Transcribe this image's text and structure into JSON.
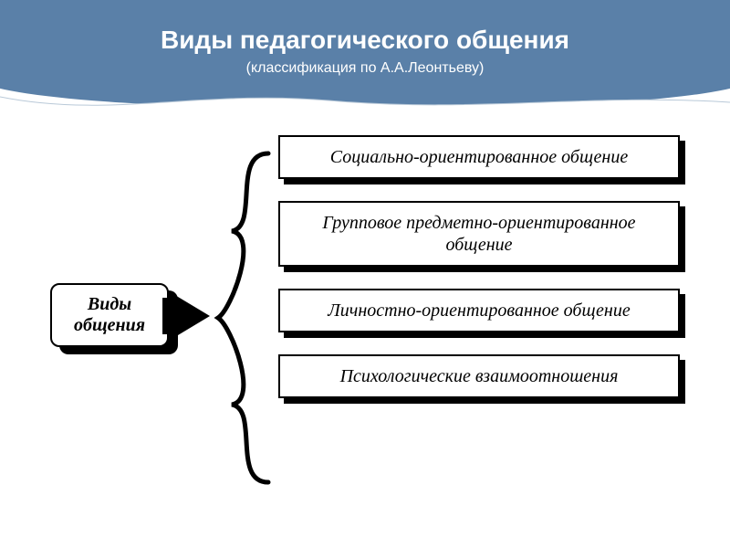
{
  "header": {
    "title": "Виды педагогического общения",
    "subtitle": "(классификация по А.А.Леонтьеву)",
    "bg_color": "#5a80a8",
    "title_color": "#ffffff",
    "title_fontsize": 28,
    "subtitle_fontsize": 16
  },
  "diagram": {
    "type": "tree",
    "root": {
      "label": "Виды\nобщения",
      "fontsize": 20,
      "box_bg": "#ffffff",
      "box_border": "#000000",
      "shadow_color": "#000000"
    },
    "arrow_color": "#000000",
    "brace_color": "#000000",
    "items": [
      {
        "label": "Социально-ориентированное общение"
      },
      {
        "label": "Групповое предметно-ориентированное общение"
      },
      {
        "label": "Личностно-ориентированное общение"
      },
      {
        "label": "Психологические взаимоотношения"
      }
    ],
    "item_fontsize": 20,
    "item_bg": "#ffffff",
    "item_border": "#000000",
    "item_shadow": "#000000"
  },
  "colors": {
    "page_bg": "#ffffff"
  }
}
